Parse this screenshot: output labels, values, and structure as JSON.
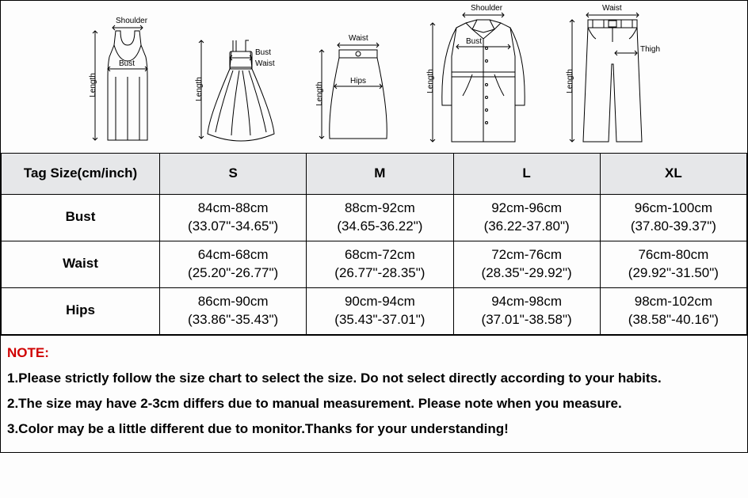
{
  "diagram_labels": {
    "shoulder": "Shoulder",
    "bust": "Bust",
    "waist": "Waist",
    "hips": "Hips",
    "length": "Length",
    "thigh": "Thigh"
  },
  "size_table": {
    "type": "table",
    "header_label": "Tag Size(cm/inch)",
    "columns": [
      "S",
      "M",
      "L",
      "XL"
    ],
    "rows": [
      {
        "label": "Bust",
        "cells": [
          {
            "cm": "84cm-88cm",
            "in": "(33.07\"-34.65\")"
          },
          {
            "cm": "88cm-92cm",
            "in": "(34.65-36.22\")"
          },
          {
            "cm": "92cm-96cm",
            "in": "(36.22-37.80\")"
          },
          {
            "cm": "96cm-100cm",
            "in": "(37.80-39.37\")"
          }
        ]
      },
      {
        "label": "Waist",
        "cells": [
          {
            "cm": "64cm-68cm",
            "in": "(25.20\"-26.77\")"
          },
          {
            "cm": "68cm-72cm",
            "in": "(26.77\"-28.35\")"
          },
          {
            "cm": "72cm-76cm",
            "in": "(28.35\"-29.92\")"
          },
          {
            "cm": "76cm-80cm",
            "in": "(29.92\"-31.50\")"
          }
        ]
      },
      {
        "label": "Hips",
        "cells": [
          {
            "cm": "86cm-90cm",
            "in": "(33.86\"-35.43\")"
          },
          {
            "cm": "90cm-94cm",
            "in": "(35.43\"-37.01\")"
          },
          {
            "cm": "94cm-98cm",
            "in": "(37.01\"-38.58\")"
          },
          {
            "cm": "98cm-102cm",
            "in": "(38.58\"-40.16\")"
          }
        ]
      }
    ],
    "header_bg": "#e6e7e9",
    "border_color": "#000000",
    "font_size": 17
  },
  "notes": {
    "title": "NOTE:",
    "title_color": "#d00000",
    "items": [
      "1.Please strictly follow the size chart to select the size. Do not select directly according to your habits.",
      "2.The size may have 2-3cm differs due to manual measurement. Please note when you measure.",
      "3.Color may be a little different due to monitor.Thanks for your understanding!"
    ]
  },
  "colors": {
    "background": "#fdfdfd",
    "line": "#000000"
  }
}
